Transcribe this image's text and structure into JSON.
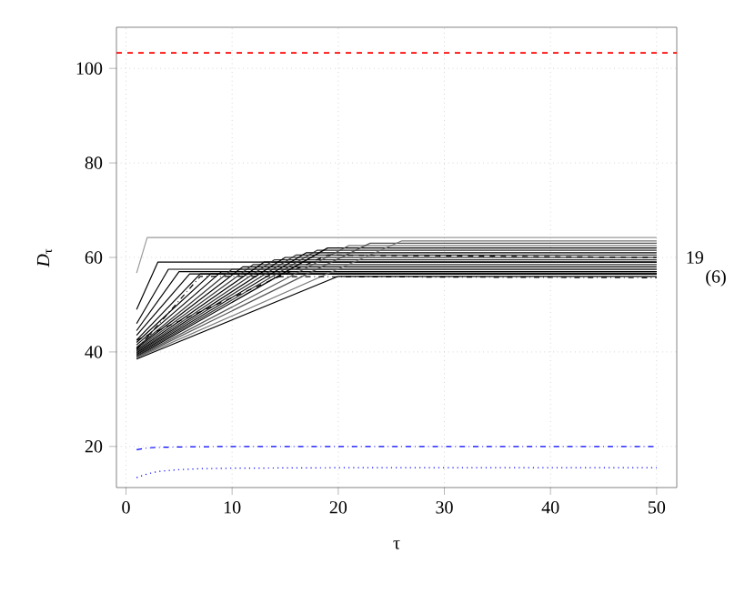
{
  "chart_data": {
    "type": "line",
    "xlabel": "τ",
    "ylabel": "*D*$_{τ}$",
    "xlim": [
      -0.9,
      51.9
    ],
    "ylim": [
      11.3,
      108.7
    ],
    "xticks": [
      0,
      10,
      20,
      30,
      40,
      50
    ],
    "yticks": [
      20,
      40,
      60,
      80,
      100
    ],
    "grid": true,
    "marker": "none",
    "line_style": "solid",
    "ref_lines": [
      {
        "axis": "y",
        "value": 103.3,
        "color": "#ff0000",
        "line_style": "dashed"
      }
    ],
    "annotations": [
      "19",
      "(6)"
    ],
    "series": [
      {
        "color": "#999999",
        "x": [
          1,
          2,
          50
        ],
        "values": [
          56.7,
          64.2,
          64.2
        ]
      },
      {
        "color": "#000000",
        "x": [
          1,
          3,
          50
        ],
        "values": [
          49,
          59,
          59
        ]
      },
      {
        "color": "#000000",
        "x": [
          1,
          4,
          50
        ],
        "values": [
          46,
          57.5,
          57.5
        ]
      },
      {
        "color": "#000000",
        "x": [
          1,
          5,
          50
        ],
        "values": [
          44.5,
          57,
          57
        ]
      },
      {
        "color": "#000000",
        "x": [
          1,
          6,
          50
        ],
        "values": [
          43.5,
          56.5,
          56.5
        ]
      },
      {
        "color": "#000000",
        "x": [
          1,
          7,
          50
        ],
        "values": [
          42.5,
          56.5,
          56.5
        ]
      },
      {
        "color": "#000000",
        "x": [
          1,
          8,
          50
        ],
        "values": [
          42,
          56.5,
          56.5
        ]
      },
      {
        "color": "#000000",
        "x": [
          1,
          9,
          50
        ],
        "values": [
          41.5,
          57,
          57
        ]
      },
      {
        "color": "#333333",
        "x": [
          1,
          10,
          50
        ],
        "values": [
          41,
          57.5,
          57.5
        ]
      },
      {
        "color": "#000000",
        "x": [
          1,
          11,
          50
        ],
        "values": [
          40.8,
          58,
          58
        ]
      },
      {
        "color": "#333333",
        "x": [
          1,
          12,
          50
        ],
        "values": [
          40.5,
          58.5,
          58.5
        ]
      },
      {
        "color": "#000000",
        "x": [
          1,
          13,
          50
        ],
        "values": [
          40.2,
          59,
          59
        ]
      },
      {
        "color": "#333333",
        "x": [
          1,
          14,
          50
        ],
        "values": [
          40,
          59.5,
          59.5
        ]
      },
      {
        "color": "#000000",
        "x": [
          1,
          15,
          50
        ],
        "values": [
          39.8,
          60,
          60
        ]
      },
      {
        "color": "#333333",
        "x": [
          1,
          16,
          50
        ],
        "values": [
          39.6,
          60.5,
          60.5
        ]
      },
      {
        "color": "#000000",
        "x": [
          1,
          17,
          50
        ],
        "values": [
          39.4,
          61,
          61
        ]
      },
      {
        "color": "#333333",
        "x": [
          1,
          18,
          50
        ],
        "values": [
          39.2,
          61.5,
          61.5
        ]
      },
      {
        "color": "#000000",
        "x": [
          1,
          19,
          50
        ],
        "values": [
          39,
          62,
          62
        ]
      },
      {
        "color": "#555555",
        "x": [
          1,
          21,
          50
        ],
        "values": [
          38.9,
          62.5,
          62.5
        ]
      },
      {
        "color": "#555555",
        "x": [
          1,
          23,
          50
        ],
        "values": [
          38.8,
          63,
          63
        ]
      },
      {
        "color": "#777777",
        "x": [
          1,
          26,
          50
        ],
        "values": [
          38.7,
          63.5,
          63.5
        ]
      },
      {
        "color": "#000000",
        "x": [
          1,
          20,
          50
        ],
        "values": [
          38.5,
          56,
          56
        ]
      },
      {
        "color": "#000000",
        "x": [
          1,
          19,
          50
        ],
        "values": [
          42.5,
          60.5,
          60
        ],
        "line_style": "dashed"
      },
      {
        "color": "#000000",
        "x": [
          1,
          7,
          50
        ],
        "values": [
          40.5,
          56,
          55.7
        ],
        "line_style": "dashdot"
      },
      {
        "color": "#0000ff",
        "x": [
          1,
          2,
          3,
          5,
          10,
          50
        ],
        "values": [
          19.3,
          19.7,
          19.8,
          19.9,
          20,
          20
        ],
        "line_style": "dashdot"
      },
      {
        "color": "#0000ff",
        "x": [
          1,
          2,
          3,
          5,
          7,
          10,
          20,
          50
        ],
        "values": [
          13.4,
          14.2,
          14.7,
          15.1,
          15.3,
          15.4,
          15.5,
          15.5
        ],
        "line_style": "dotted"
      }
    ]
  }
}
